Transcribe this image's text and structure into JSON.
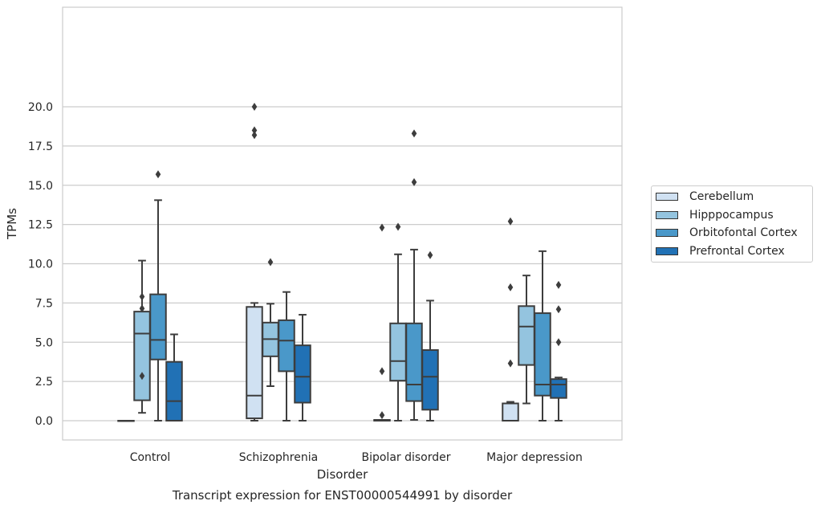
{
  "chart_data": {
    "type": "box",
    "title": "",
    "caption": "Transcript expression for ENST00000544991 by disorder",
    "xlabel": "Disorder",
    "ylabel": "TPMs",
    "ylim": [
      -1.0,
      21.0
    ],
    "yticks": [
      "0.0",
      "2.5",
      "5.0",
      "7.5",
      "10.0",
      "12.5",
      "15.0",
      "17.5",
      "20.0"
    ],
    "grid": "horizontal",
    "legend_position": "right",
    "categories": [
      "Control",
      "Schizophrenia",
      "Bipolar disorder",
      "Major depression"
    ],
    "series": [
      {
        "name": "Cerebellum",
        "color": "#d0e1f2",
        "boxes": [
          {
            "q1": 0.0,
            "median": 0.0,
            "q3": 0.0,
            "whisker_low": 0.0,
            "whisker_high": 0.0,
            "outliers": []
          },
          {
            "q1": 0.15,
            "median": 1.6,
            "q3": 7.25,
            "whisker_low": 0.0,
            "whisker_high": 7.5,
            "outliers": [
              18.2,
              18.5,
              20.0
            ]
          },
          {
            "q1": 0.0,
            "median": 0.0,
            "q3": 0.05,
            "whisker_low": 0.0,
            "whisker_high": 0.05,
            "outliers": [
              0.35,
              3.15,
              12.3
            ]
          },
          {
            "q1": 0.0,
            "median": 0.0,
            "q3": 1.1,
            "whisker_low": 0.0,
            "whisker_high": 1.2,
            "outliers": [
              3.65,
              8.5,
              12.7
            ]
          }
        ]
      },
      {
        "name": "Hipppocampus",
        "color": "#94c4df",
        "boxes": [
          {
            "q1": 1.3,
            "median": 5.55,
            "q3": 6.95,
            "whisker_low": 0.5,
            "whisker_high": 10.2,
            "outliers": [
              2.85,
              7.15,
              7.9
            ]
          },
          {
            "q1": 4.1,
            "median": 5.2,
            "q3": 6.25,
            "whisker_low": 2.2,
            "whisker_high": 7.45,
            "outliers": [
              10.1
            ]
          },
          {
            "q1": 2.55,
            "median": 3.8,
            "q3": 6.2,
            "whisker_low": 0.0,
            "whisker_high": 10.6,
            "outliers": [
              12.35
            ]
          },
          {
            "q1": 3.55,
            "median": 6.0,
            "q3": 7.3,
            "whisker_low": 1.1,
            "whisker_high": 9.25,
            "outliers": []
          }
        ]
      },
      {
        "name": "Orbitofontal Cortex",
        "color": "#4a98c9",
        "boxes": [
          {
            "q1": 3.9,
            "median": 5.15,
            "q3": 8.05,
            "whisker_low": 0.0,
            "whisker_high": 14.05,
            "outliers": [
              15.7
            ]
          },
          {
            "q1": 3.15,
            "median": 5.1,
            "q3": 6.4,
            "whisker_low": 0.0,
            "whisker_high": 8.2,
            "outliers": []
          },
          {
            "q1": 1.25,
            "median": 2.3,
            "q3": 6.2,
            "whisker_low": 0.05,
            "whisker_high": 10.9,
            "outliers": [
              15.2,
              18.3
            ]
          },
          {
            "q1": 1.6,
            "median": 2.3,
            "q3": 6.85,
            "whisker_low": 0.0,
            "whisker_high": 10.8,
            "outliers": []
          }
        ]
      },
      {
        "name": "Prefrontal Cortex",
        "color": "#2171b5",
        "boxes": [
          {
            "q1": 0.0,
            "median": 1.25,
            "q3": 3.75,
            "whisker_low": 0.0,
            "whisker_high": 5.5,
            "outliers": []
          },
          {
            "q1": 1.15,
            "median": 2.8,
            "q3": 4.8,
            "whisker_low": 0.0,
            "whisker_high": 6.75,
            "outliers": []
          },
          {
            "q1": 0.7,
            "median": 2.8,
            "q3": 4.5,
            "whisker_low": 0.0,
            "whisker_high": 7.65,
            "outliers": [
              10.55
            ]
          },
          {
            "q1": 1.45,
            "median": 2.3,
            "q3": 2.65,
            "whisker_low": 0.0,
            "whisker_high": 2.75,
            "outliers": [
              5.0,
              7.1,
              8.65
            ]
          }
        ]
      }
    ]
  }
}
